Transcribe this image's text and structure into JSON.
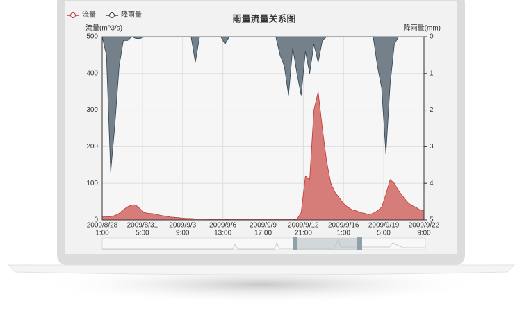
{
  "chart_data": {
    "type": "area",
    "title": "雨量流量关系图",
    "y_axis_label": "流量(m^3/s)",
    "y2_axis_label": "降雨量(mm)",
    "x": [
      "2009/8/28 1:00",
      "2009/8/28 9:00",
      "2009/8/28 17:00",
      "2009/8/29 1:00",
      "2009/8/29 9:00",
      "2009/8/29 17:00",
      "2009/8/30 1:00",
      "2009/8/30 9:00",
      "2009/8/30 17:00",
      "2009/8/31 1:00",
      "2009/8/31 9:00",
      "2009/8/31 17:00",
      "2009/9/1 1:00",
      "2009/9/1 9:00",
      "2009/9/1 17:00",
      "2009/9/2 1:00",
      "2009/9/2 9:00",
      "2009/9/2 17:00",
      "2009/9/3 1:00",
      "2009/9/3 9:00",
      "2009/9/3 17:00",
      "2009/9/4 1:00",
      "2009/9/4 9:00",
      "2009/9/4 17:00",
      "2009/9/5 1:00",
      "2009/9/5 9:00",
      "2009/9/5 17:00",
      "2009/9/6 1:00",
      "2009/9/6 9:00",
      "2009/9/6 17:00",
      "2009/9/7 1:00",
      "2009/9/7 9:00",
      "2009/9/7 17:00",
      "2009/9/8 1:00",
      "2009/9/8 9:00",
      "2009/9/8 17:00",
      "2009/9/9 1:00",
      "2009/9/9 9:00",
      "2009/9/9 17:00",
      "2009/9/10 1:00",
      "2009/9/10 9:00",
      "2009/9/10 17:00",
      "2009/9/11 1:00",
      "2009/9/11 9:00",
      "2009/9/11 17:00",
      "2009/9/12 1:00",
      "2009/9/12 9:00",
      "2009/9/12 17:00",
      "2009/9/13 1:00",
      "2009/9/13 9:00",
      "2009/9/13 17:00",
      "2009/9/14 1:00",
      "2009/9/14 9:00",
      "2009/9/14 17:00",
      "2009/9/15 1:00",
      "2009/9/15 9:00",
      "2009/9/15 17:00",
      "2009/9/16 1:00",
      "2009/9/16 9:00",
      "2009/9/16 17:00",
      "2009/9/17 1:00",
      "2009/9/17 9:00",
      "2009/9/17 17:00",
      "2009/9/18 1:00",
      "2009/9/18 9:00",
      "2009/9/18 17:00",
      "2009/9/19 1:00",
      "2009/9/19 9:00",
      "2009/9/19 17:00",
      "2009/9/20 1:00",
      "2009/9/20 9:00",
      "2009/9/20 17:00",
      "2009/9/21 1:00",
      "2009/9/21 9:00",
      "2009/9/21 17:00",
      "2009/9/22 1:00",
      "2009/9/22 9:00"
    ],
    "xlim": [
      "2009/8/28 1:00",
      "2009/9/22 9:00"
    ],
    "xticks": [
      {
        "value": "2009/8/28 1:00",
        "label": [
          "2009/8/28",
          "1:00"
        ]
      },
      {
        "value": "2009/8/31 5:00",
        "label": [
          "2009/8/31",
          "5:00"
        ]
      },
      {
        "value": "2009/9/3 9:00",
        "label": [
          "2009/9/3",
          "9:00"
        ]
      },
      {
        "value": "2009/9/6 13:00",
        "label": [
          "2009/9/6",
          "13:00"
        ]
      },
      {
        "value": "2009/9/9 17:00",
        "label": [
          "2009/9/9",
          "17:00"
        ]
      },
      {
        "value": "2009/9/12 21:00",
        "label": [
          "2009/9/12",
          "21:00"
        ]
      },
      {
        "value": "2009/9/16 1:00",
        "label": [
          "2009/9/16",
          "1:00"
        ]
      },
      {
        "value": "2009/9/19 5:00",
        "label": [
          "2009/9/19",
          "5:00"
        ]
      },
      {
        "value": "2009/9/22 9:00",
        "label": [
          "2009/9/22",
          "9:00"
        ]
      }
    ],
    "ylim": [
      0,
      500
    ],
    "yticks": [
      0,
      100,
      200,
      300,
      400,
      500
    ],
    "y2lim": [
      0,
      5
    ],
    "y2ticks": [
      0,
      1,
      2,
      3,
      4,
      5
    ],
    "y2_inverted": true,
    "grid": true,
    "series": [
      {
        "name": "流量",
        "color": "#c23531",
        "fill": "#d4706c",
        "values": [
          10,
          9,
          9,
          12,
          18,
          28,
          36,
          41,
          40,
          30,
          20,
          18,
          17,
          15,
          12,
          10,
          8,
          7,
          6,
          5,
          4,
          4,
          3,
          3,
          3,
          2,
          2,
          2,
          2,
          2,
          1,
          1,
          1,
          1,
          1,
          1,
          1,
          1,
          1,
          1,
          1,
          1,
          1,
          1,
          1,
          1,
          2,
          20,
          120,
          110,
          300,
          350,
          250,
          160,
          100,
          75,
          60,
          45,
          35,
          28,
          25,
          20,
          18,
          15,
          18,
          25,
          35,
          70,
          110,
          100,
          80,
          65,
          50,
          40,
          35,
          28,
          25
        ]
      },
      {
        "name": "降雨量",
        "color": "#2f4554",
        "fill": "#66737e",
        "axis": "y2",
        "values": [
          0,
          0.5,
          3.7,
          2.4,
          0.8,
          0.1,
          0.1,
          0,
          0.05,
          0.05,
          0,
          0,
          0,
          0,
          0,
          0,
          0,
          0,
          0,
          0,
          0,
          0,
          0.7,
          0,
          0,
          0,
          0,
          0,
          0,
          0.2,
          0,
          0,
          0,
          0,
          0,
          0,
          0,
          0,
          0,
          0,
          0,
          0,
          0.5,
          0.8,
          1.6,
          0.3,
          1.0,
          1.6,
          0.4,
          1.0,
          0.2,
          0.7,
          0.1,
          0,
          0,
          0,
          0,
          0,
          0,
          0,
          0,
          0,
          0,
          0,
          0,
          0.8,
          1.4,
          3.2,
          1.3,
          0.2,
          0,
          0,
          0,
          0,
          0,
          0,
          0
        ]
      }
    ]
  }
}
